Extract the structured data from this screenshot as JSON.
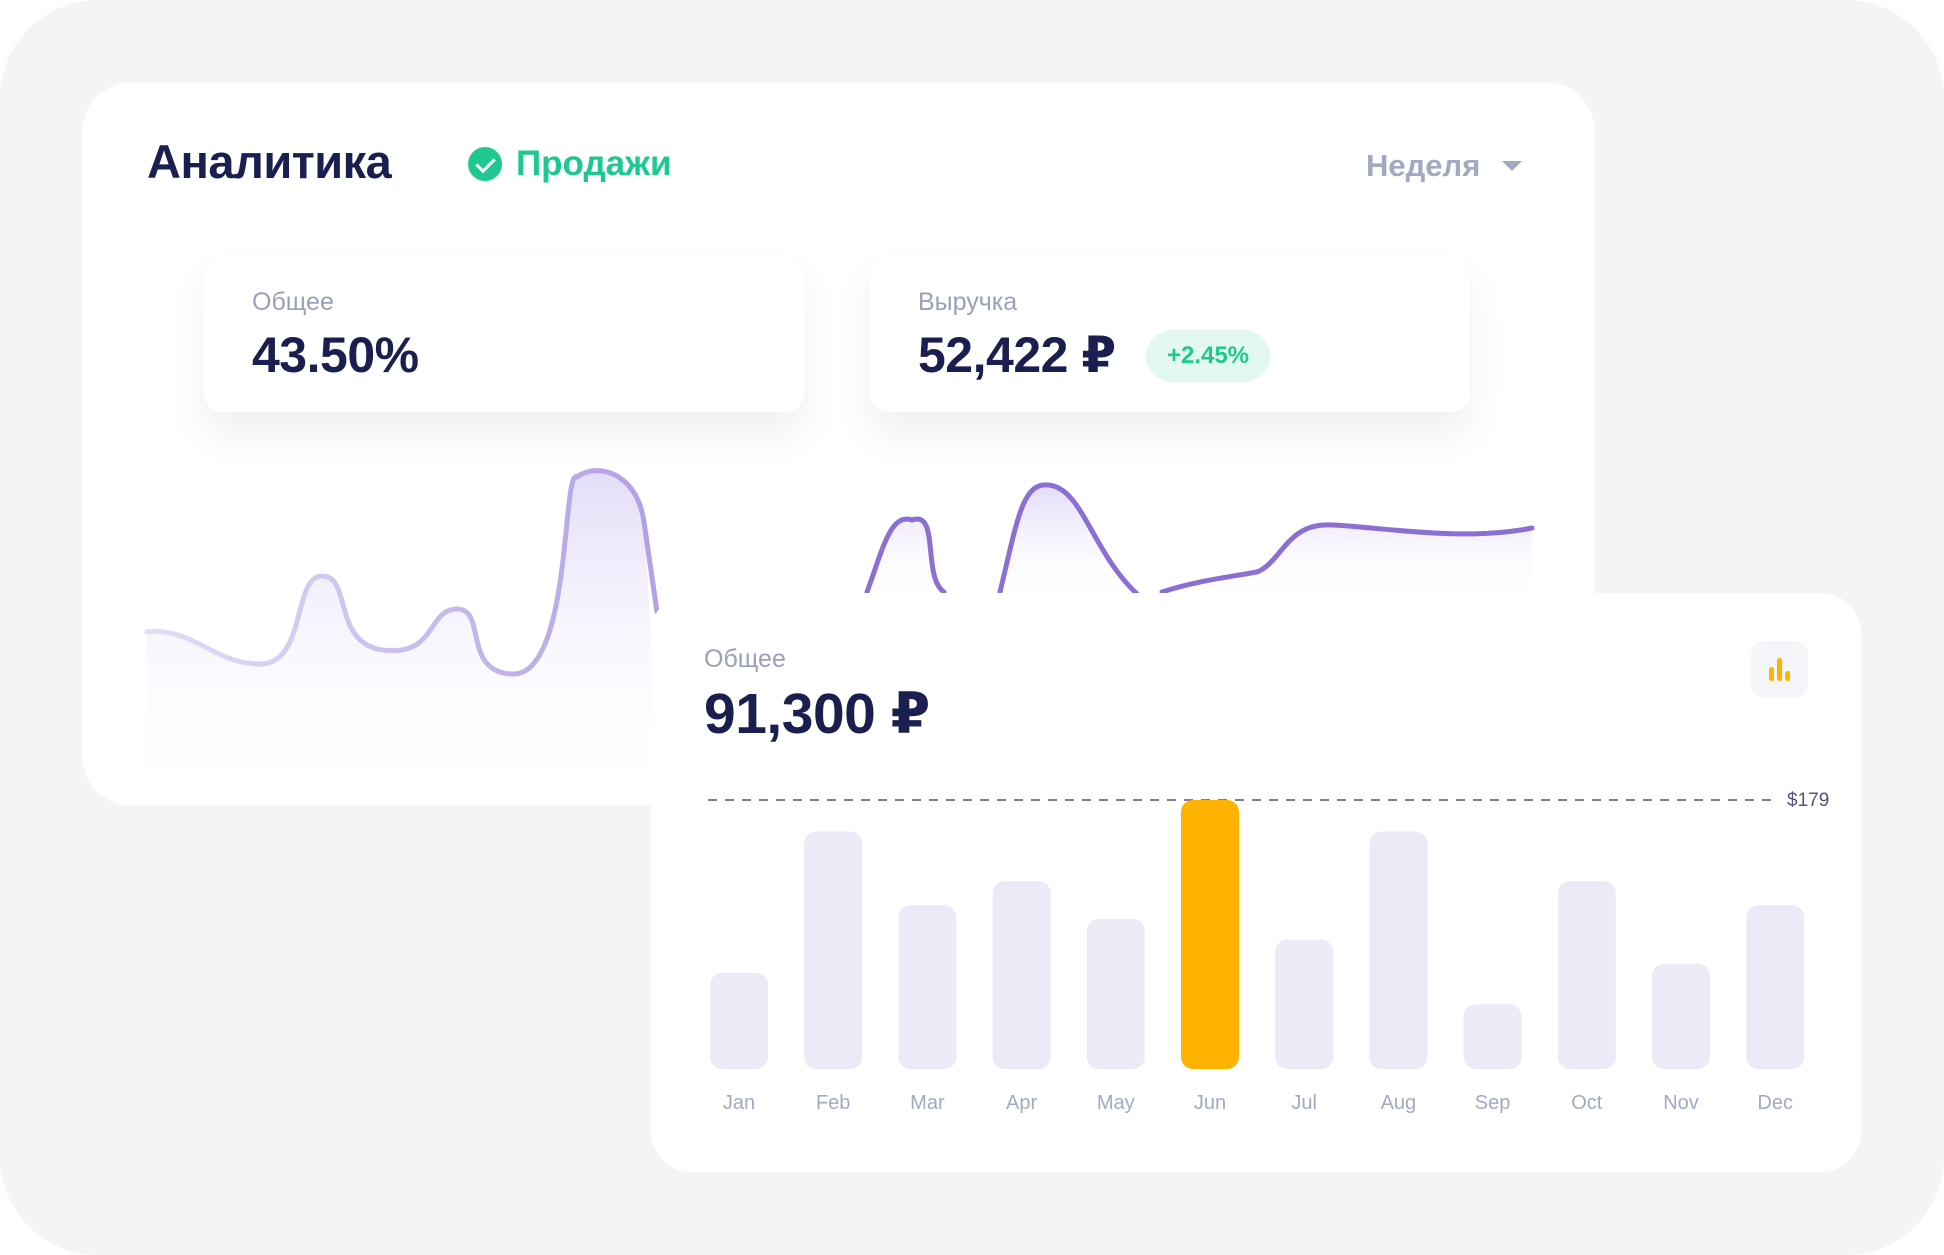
{
  "header": {
    "title": "Аналитика",
    "sales_tab": "Продажи",
    "period": "Неделя"
  },
  "stats": {
    "general": {
      "label": "Общее",
      "value": "43.50%"
    },
    "revenue": {
      "label": "Выручка",
      "value": "52,422 ₽",
      "change": "+2.45%"
    }
  },
  "colors": {
    "accent_green": "#1ec98f",
    "line_purple": "#8b6fd3",
    "bar_default": "#ebebf7",
    "bar_highlight": "#ffb200",
    "text_dark": "#1b1f4f",
    "text_muted": "#9aa0b8"
  },
  "icons": {
    "check": "check-circle-icon",
    "caret": "chevron-down-icon",
    "chart_toggle": "bar-chart-icon"
  },
  "summary": {
    "label": "Общее",
    "value": "91,300 ₽"
  },
  "chart_data": {
    "type": "bar",
    "categories": [
      "Jan",
      "Feb",
      "Mar",
      "Apr",
      "May",
      "Jun",
      "Jul",
      "Aug",
      "Sep",
      "Oct",
      "Nov",
      "Dec"
    ],
    "values": [
      64,
      158,
      109,
      125,
      100,
      179,
      86,
      158,
      43,
      125,
      70,
      109
    ],
    "highlight": "Jun",
    "reference_line": {
      "value": 179,
      "label": "$179"
    },
    "ylim": [
      0,
      179
    ],
    "grid": false
  }
}
